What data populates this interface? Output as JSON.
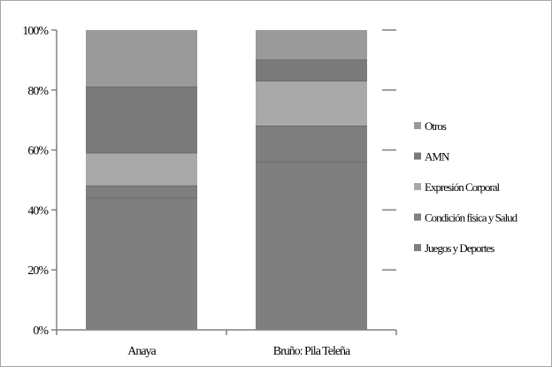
{
  "chart_data": {
    "type": "bar",
    "stacked": true,
    "normalized": true,
    "categories": [
      "Anaya",
      "Bruño: Pila Teleña"
    ],
    "series": [
      {
        "name": "Juegos y Deportes",
        "values": [
          44,
          56
        ],
        "color": "#7f7f7f"
      },
      {
        "name": "Condición física y Salud",
        "values": [
          4,
          12
        ],
        "color": "#7f7f7f"
      },
      {
        "name": "Expresión Corporal",
        "values": [
          11,
          15
        ],
        "color": "#a9a9a9"
      },
      {
        "name": "AMN",
        "values": [
          22,
          7
        ],
        "color": "#7a7a7a"
      },
      {
        "name": "Otros",
        "values": [
          19,
          10
        ],
        "color": "#9a9a9a"
      }
    ],
    "yticks": [
      "0%",
      "20%",
      "40%",
      "60%",
      "80%",
      "100%"
    ],
    "ylim": [
      0,
      100
    ],
    "grid": false,
    "legend": "right",
    "title": "",
    "xlabel": "",
    "ylabel": ""
  }
}
